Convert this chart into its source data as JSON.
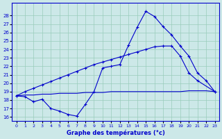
{
  "xlabel": "Graphe des températures (°c)",
  "hours": [
    0,
    1,
    2,
    3,
    4,
    5,
    6,
    7,
    8,
    9,
    10,
    11,
    12,
    13,
    14,
    15,
    16,
    17,
    18,
    19,
    20,
    21,
    22,
    23
  ],
  "line_main": [
    18.5,
    18.4,
    17.8,
    18.1,
    17.0,
    16.7,
    16.3,
    16.1,
    17.5,
    19.0,
    21.8,
    22.0,
    22.2,
    24.5,
    26.6,
    28.5,
    27.9,
    26.7,
    25.7,
    24.4,
    23.2,
    21.2,
    20.3,
    19.0
  ],
  "line_diag": [
    18.5,
    19.0,
    19.4,
    19.8,
    20.2,
    20.6,
    21.0,
    21.4,
    21.8,
    22.2,
    22.5,
    22.8,
    23.1,
    23.4,
    23.7,
    24.0,
    24.3,
    24.4,
    24.4,
    23.2,
    21.2,
    20.3,
    null,
    19.0
  ],
  "line_flat": [
    18.5,
    18.6,
    18.6,
    18.7,
    18.7,
    18.8,
    18.8,
    18.8,
    18.9,
    18.9,
    18.9,
    19.0,
    19.0,
    19.0,
    19.0,
    19.0,
    19.0,
    19.0,
    19.0,
    19.0,
    19.1,
    19.1,
    19.1,
    19.0
  ],
  "ylim": [
    15.5,
    29.5
  ],
  "xlim": [
    -0.5,
    23.5
  ],
  "yticks": [
    16,
    17,
    18,
    19,
    20,
    21,
    22,
    23,
    24,
    25,
    26,
    27,
    28
  ],
  "xticks": [
    0,
    1,
    2,
    3,
    4,
    5,
    6,
    7,
    8,
    9,
    10,
    11,
    12,
    13,
    14,
    15,
    16,
    17,
    18,
    19,
    20,
    21,
    22,
    23
  ],
  "line_color": "#0000cc",
  "bg_color": "#cce8e8",
  "grid_color": "#99ccbb"
}
